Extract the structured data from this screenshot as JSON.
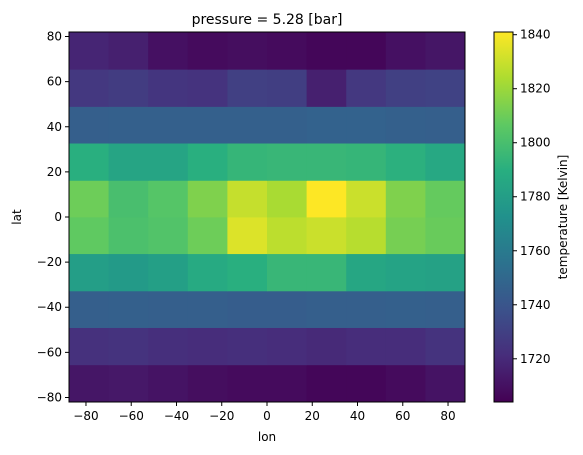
{
  "chart_data": {
    "type": "heatmap",
    "title": "pressure = 5.28 [bar]",
    "xlabel": "lon",
    "ylabel": "lat",
    "colorbar_label": "temperature [Kelvin]",
    "colormap": "viridis",
    "vmin": 1704,
    "vmax": 1841,
    "x_centers": [
      -78.75,
      -61.25,
      -43.75,
      -26.25,
      -8.75,
      8.75,
      26.25,
      43.75,
      61.25,
      78.75
    ],
    "y_centers": [
      -74.0,
      -57.0,
      -41.0,
      -24.5,
      -8.0,
      8.0,
      24.5,
      41.0,
      57.0,
      74.0
    ],
    "xlim": [
      -87.5,
      87.5
    ],
    "ylim": [
      -82.0,
      82.0
    ],
    "x_ticks": [
      "−80",
      "−60",
      "−40",
      "−20",
      "0",
      "20",
      "40",
      "60",
      "80"
    ],
    "y_ticks": [
      "−80",
      "−60",
      "−40",
      "−20",
      "0",
      "20",
      "40",
      "60",
      "80"
    ],
    "colorbar_ticks": [
      "1720",
      "1740",
      "1760",
      "1780",
      "1800",
      "1820",
      "1840"
    ],
    "values": [
      [
        1712,
        1713,
        1711,
        1709,
        1708,
        1708,
        1706,
        1706,
        1708,
        1711
      ],
      [
        1723,
        1724,
        1722,
        1721,
        1722,
        1721,
        1720,
        1721,
        1721,
        1724
      ],
      [
        1745,
        1746,
        1745,
        1745,
        1744,
        1744,
        1745,
        1745,
        1746,
        1745
      ],
      [
        1780,
        1778,
        1781,
        1787,
        1790,
        1795,
        1795,
        1785,
        1783,
        1782
      ],
      [
        1807,
        1801,
        1803,
        1810,
        1834,
        1827,
        1830,
        1826,
        1812,
        1809
      ],
      [
        1810,
        1800,
        1804,
        1814,
        1829,
        1823,
        1841,
        1830,
        1814,
        1808
      ],
      [
        1790,
        1784,
        1784,
        1790,
        1794,
        1795,
        1795,
        1794,
        1791,
        1786
      ],
      [
        1745,
        1746,
        1746,
        1746,
        1746,
        1746,
        1747,
        1747,
        1746,
        1745
      ],
      [
        1726,
        1728,
        1725,
        1724,
        1730,
        1729,
        1716,
        1726,
        1730,
        1731
      ],
      [
        1718,
        1716,
        1710,
        1708,
        1709,
        1708,
        1706,
        1706,
        1710,
        1712
      ]
    ]
  }
}
